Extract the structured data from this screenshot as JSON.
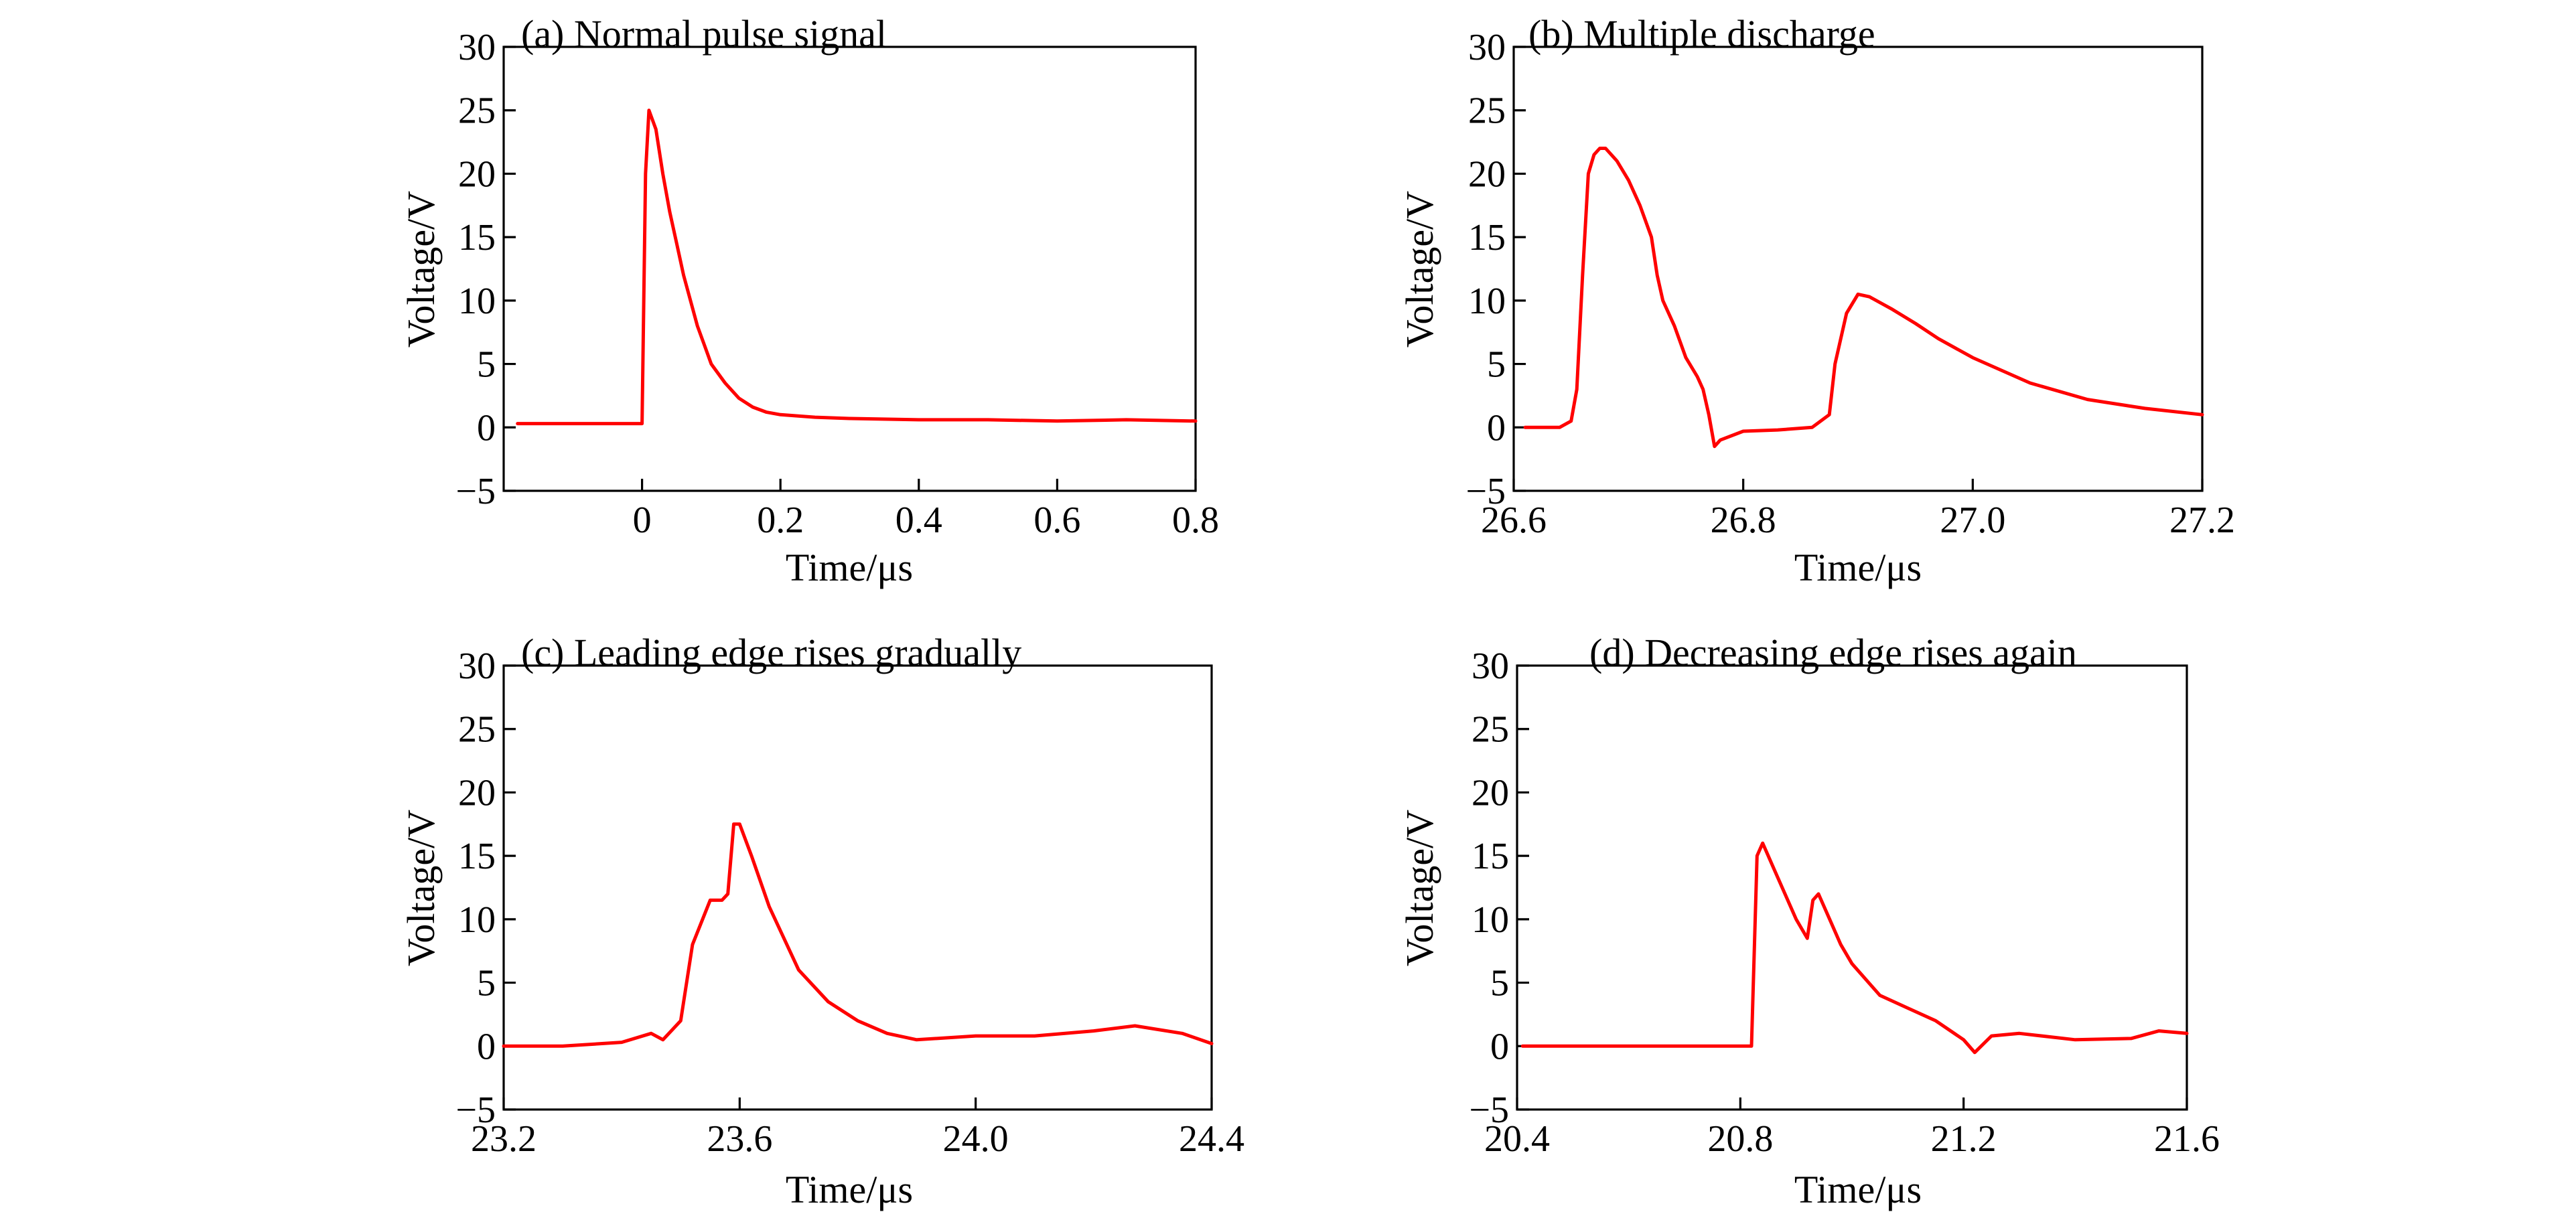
{
  "chart_data": [
    {
      "type": "line",
      "title": "(a) Normal pulse signal",
      "xlabel": "Time/μs",
      "ylabel": "Voltage/V",
      "xlim": [
        -0.2,
        0.8
      ],
      "ylim": [
        -5,
        30
      ],
      "xticks": [
        0,
        0.2,
        0.4,
        0.6,
        0.8
      ],
      "xtick_labels": [
        "0",
        "0.2",
        "0.4",
        "0.6",
        "0.8"
      ],
      "yticks": [
        -5,
        0,
        5,
        10,
        15,
        20,
        25,
        30
      ],
      "ytick_labels": [
        "−5",
        "0",
        "5",
        "10",
        "15",
        "20",
        "25",
        "30"
      ],
      "grid": false,
      "color": "#ff0000",
      "series": [
        {
          "x": [
            -0.18,
            -0.1,
            -0.02,
            0.0,
            0.005,
            0.01,
            0.02,
            0.03,
            0.04,
            0.05,
            0.06,
            0.07,
            0.08,
            0.09,
            0.1,
            0.12,
            0.14,
            0.16,
            0.18,
            0.2,
            0.25,
            0.3,
            0.4,
            0.5,
            0.6,
            0.7,
            0.8
          ],
          "y": [
            0.3,
            0.3,
            0.3,
            0.3,
            20,
            25,
            23.5,
            20,
            17,
            14.5,
            12,
            10,
            8,
            6.5,
            5,
            3.5,
            2.3,
            1.6,
            1.2,
            1.0,
            0.8,
            0.7,
            0.6,
            0.6,
            0.5,
            0.6,
            0.5
          ]
        }
      ]
    },
    {
      "type": "line",
      "title": "(b) Multiple discharge",
      "xlabel": "Time/μs",
      "ylabel": "Voltage/V",
      "xlim": [
        26.6,
        27.2
      ],
      "ylim": [
        -5,
        30
      ],
      "xticks": [
        26.6,
        26.8,
        27.0,
        27.2
      ],
      "xtick_labels": [
        "26.6",
        "26.8",
        "27.0",
        "27.2"
      ],
      "yticks": [
        -5,
        0,
        5,
        10,
        15,
        20,
        25,
        30
      ],
      "ytick_labels": [
        "−5",
        "0",
        "5",
        "10",
        "15",
        "20",
        "25",
        "30"
      ],
      "grid": false,
      "color": "#ff0000",
      "series": [
        {
          "x": [
            26.61,
            26.64,
            26.65,
            26.655,
            26.66,
            26.665,
            26.67,
            26.675,
            26.68,
            26.69,
            26.7,
            26.71,
            26.72,
            26.725,
            26.73,
            26.74,
            26.75,
            26.76,
            26.765,
            26.77,
            26.775,
            26.78,
            26.8,
            26.83,
            26.86,
            26.875,
            26.88,
            26.89,
            26.9,
            26.91,
            26.93,
            26.95,
            26.97,
            27.0,
            27.05,
            27.1,
            27.15,
            27.2
          ],
          "y": [
            0,
            0,
            0.5,
            3,
            12,
            20,
            21.5,
            22,
            22,
            21,
            19.5,
            17.5,
            15,
            12,
            10,
            8,
            5.5,
            4,
            3,
            1,
            -1.5,
            -1,
            -0.3,
            -0.2,
            0,
            1,
            5,
            9,
            10.5,
            10.3,
            9.3,
            8.2,
            7,
            5.5,
            3.5,
            2.2,
            1.5,
            1
          ]
        }
      ]
    },
    {
      "type": "line",
      "title": "(c) Leading edge rises gradually",
      "xlabel": "Time/μs",
      "ylabel": "Voltage/V",
      "xlim": [
        23.2,
        24.4
      ],
      "ylim": [
        -5,
        30
      ],
      "xticks": [
        23.2,
        23.6,
        24.0,
        24.4
      ],
      "xtick_labels": [
        "23.2",
        "23.6",
        "24.0",
        "24.4"
      ],
      "yticks": [
        -5,
        0,
        5,
        10,
        15,
        20,
        25,
        30
      ],
      "ytick_labels": [
        "−5",
        "0",
        "5",
        "10",
        "15",
        "20",
        "25",
        "30"
      ],
      "grid": false,
      "color": "#ff0000",
      "series": [
        {
          "x": [
            23.2,
            23.3,
            23.4,
            23.45,
            23.47,
            23.5,
            23.52,
            23.55,
            23.57,
            23.58,
            23.59,
            23.6,
            23.62,
            23.65,
            23.7,
            23.75,
            23.8,
            23.85,
            23.9,
            24.0,
            24.1,
            24.2,
            24.27,
            24.35,
            24.4
          ],
          "y": [
            0,
            0,
            0.3,
            1,
            0.5,
            2,
            8,
            11.5,
            11.5,
            12,
            17.5,
            17.5,
            15,
            11,
            6,
            3.5,
            2,
            1,
            0.5,
            0.8,
            0.8,
            1.2,
            1.6,
            1,
            0.2
          ]
        }
      ]
    },
    {
      "type": "line",
      "title": "(d) Decreasing edge rises again",
      "xlabel": "Time/μs",
      "ylabel": "Voltage/V",
      "xlim": [
        20.4,
        21.6
      ],
      "ylim": [
        -5,
        30
      ],
      "xticks": [
        20.4,
        20.8,
        21.2,
        21.6
      ],
      "xtick_labels": [
        "20.4",
        "20.8",
        "21.2",
        "21.6"
      ],
      "yticks": [
        -5,
        0,
        5,
        10,
        15,
        20,
        25,
        30
      ],
      "ytick_labels": [
        "−5",
        "0",
        "5",
        "10",
        "15",
        "20",
        "25",
        "30"
      ],
      "grid": false,
      "color": "#ff0000",
      "series": [
        {
          "x": [
            20.41,
            20.6,
            20.82,
            20.83,
            20.84,
            20.86,
            20.88,
            20.9,
            20.92,
            20.93,
            20.94,
            20.96,
            20.98,
            21.0,
            21.05,
            21.1,
            21.15,
            21.2,
            21.22,
            21.25,
            21.3,
            21.4,
            21.5,
            21.55,
            21.6
          ],
          "y": [
            0,
            0,
            0,
            15,
            16,
            14,
            12,
            10,
            8.5,
            11.5,
            12,
            10,
            8,
            6.5,
            4,
            3,
            2,
            0.5,
            -0.5,
            0.8,
            1,
            0.5,
            0.6,
            1.2,
            1
          ]
        }
      ]
    }
  ]
}
